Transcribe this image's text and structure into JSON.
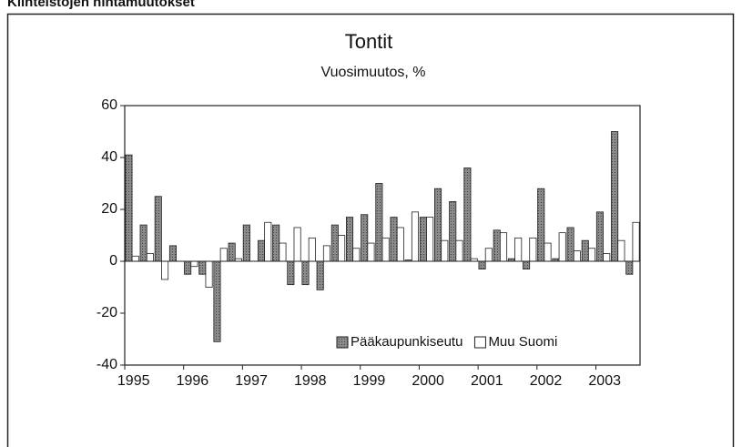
{
  "header": {
    "title": "Kiinteistöjen hintamuutokset"
  },
  "chart_data": {
    "type": "bar",
    "title": "Tontit",
    "subtitle": "Vuosimuutos, %",
    "categories": [
      "1995",
      null,
      null,
      null,
      "1996",
      null,
      null,
      null,
      "1997",
      null,
      null,
      null,
      "1998",
      null,
      null,
      null,
      "1999",
      null,
      null,
      null,
      "2000",
      null,
      null,
      null,
      "2001",
      null,
      null,
      null,
      "2002",
      null,
      null,
      null,
      "2003",
      null,
      null
    ],
    "series": [
      {
        "name": "Pääkaupunkiseutu",
        "color": "#7a7a7a",
        "values": [
          41,
          14,
          25,
          6,
          -5,
          -5,
          -31,
          7,
          14,
          8,
          14,
          -9,
          -9,
          -11,
          14,
          17,
          18,
          30,
          17,
          0.5,
          17,
          28,
          23,
          36,
          -3,
          12,
          1,
          -3,
          28,
          1,
          13,
          8,
          19,
          50,
          -5
        ]
      },
      {
        "name": "Muu Suomi",
        "color": "#ffffff",
        "values": [
          2,
          3,
          -7,
          0,
          -2,
          -10,
          5,
          1,
          0,
          15,
          7,
          13,
          9,
          6,
          10,
          5,
          7,
          9,
          13,
          19,
          17,
          8,
          8,
          1,
          5,
          11,
          9,
          9,
          7,
          11,
          4,
          5,
          3,
          8,
          15
        ]
      }
    ],
    "ylim": [
      -40,
      60
    ],
    "yticks": [
      -40,
      -20,
      0,
      20,
      40,
      60
    ],
    "grid": false,
    "legend": "lower right"
  }
}
